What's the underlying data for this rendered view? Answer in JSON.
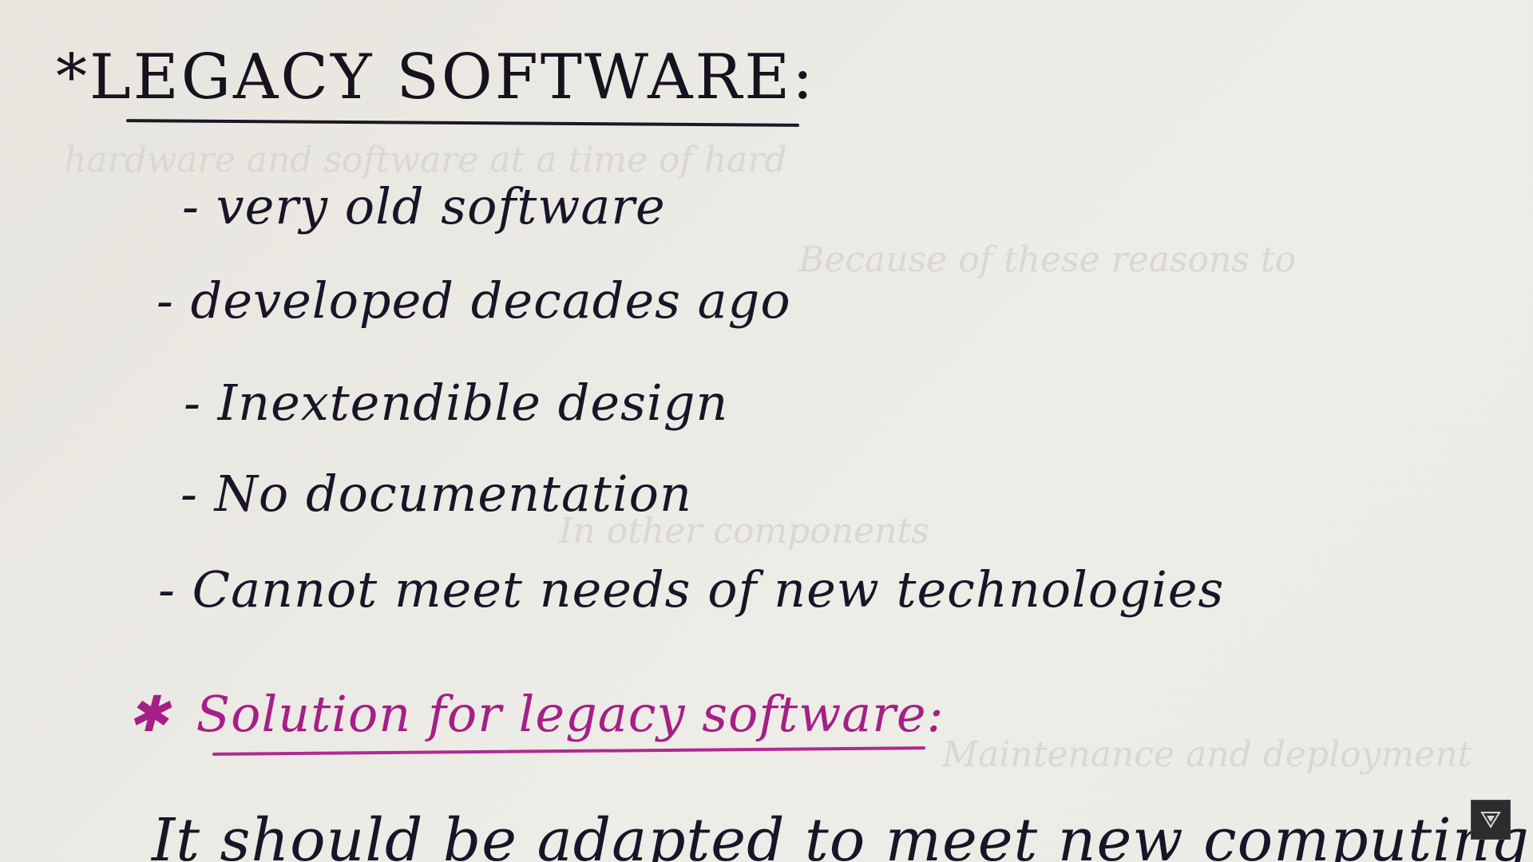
{
  "page": {
    "heading": "*LEGACY SOFTWARE:",
    "bullets": [
      "- very old software",
      "- developed decades ago",
      "- Inextendible design",
      "- No documentation",
      "- Cannot meet needs of new technologies"
    ],
    "solution_marker": "✱",
    "solution_heading": "Solution for legacy software:",
    "cut_off_line": "It should be adapted to meet new computing"
  },
  "bleed_through": [
    "hardware and software at a time of hard",
    "Because of these reasons to",
    "In other components",
    "Maintenance and deployment"
  ],
  "overlay": {
    "icon": "triangle-down-icon"
  },
  "colors": {
    "paper": "#ebe9e3",
    "ink_dark": "#1a1428",
    "ink_magenta": "#a51f86"
  }
}
